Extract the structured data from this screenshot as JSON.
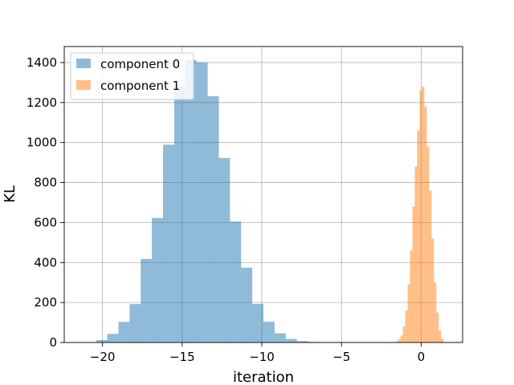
{
  "chart_data": {
    "type": "bar",
    "title": "",
    "xlabel": "iteration",
    "ylabel": "KL",
    "xlim": [
      -22.4,
      2.6
    ],
    "ylim": [
      0,
      1480
    ],
    "grid": true,
    "legend_position": "top-left",
    "xticks": [
      {
        "value": -20,
        "label": "−20"
      },
      {
        "value": -15,
        "label": "−15"
      },
      {
        "value": -10,
        "label": "−10"
      },
      {
        "value": -5,
        "label": "−5"
      },
      {
        "value": 0,
        "label": "0"
      }
    ],
    "yticks": [
      {
        "value": 0,
        "label": "0"
      },
      {
        "value": 200,
        "label": "200"
      },
      {
        "value": 400,
        "label": "400"
      },
      {
        "value": 600,
        "label": "600"
      },
      {
        "value": 800,
        "label": "800"
      },
      {
        "value": 1000,
        "label": "1000"
      },
      {
        "value": 1200,
        "label": "1200"
      },
      {
        "value": 1400,
        "label": "1400"
      }
    ],
    "series": [
      {
        "name": "component 0",
        "color": "#1f77b4",
        "opacity": 0.5,
        "bin_edges": [
          -20.4,
          -19.7,
          -19.0,
          -18.3,
          -17.6,
          -16.9,
          -16.2,
          -15.5,
          -14.8,
          -14.1,
          -13.4,
          -12.7,
          -12.0,
          -11.3,
          -10.6,
          -9.9,
          -9.2,
          -8.5,
          -7.8,
          -7.1,
          -6.4
        ],
        "counts": [
          12,
          43,
          103,
          192,
          418,
          623,
          989,
          1282,
          1412,
          1400,
          1232,
          923,
          605,
          374,
          193,
          104,
          46,
          18,
          7,
          3
        ]
      },
      {
        "name": "component 1",
        "color": "#ff7f0e",
        "opacity": 0.5,
        "bin_edges": [
          -1.6,
          -1.45,
          -1.3,
          -1.15,
          -1.0,
          -0.85,
          -0.7,
          -0.55,
          -0.4,
          -0.25,
          -0.1,
          0.05,
          0.2,
          0.35,
          0.5,
          0.65,
          0.8,
          0.95,
          1.1,
          1.25,
          1.4
        ],
        "counts": [
          5,
          15,
          35,
          80,
          160,
          290,
          460,
          680,
          880,
          1060,
          1260,
          1280,
          1180,
          980,
          760,
          520,
          300,
          150,
          60,
          20
        ]
      }
    ]
  }
}
